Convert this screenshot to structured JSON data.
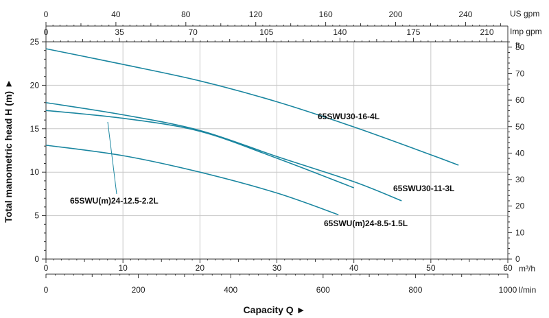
{
  "chart_data": {
    "type": "line",
    "xlabel": "Capacity Q ►",
    "ylabel": "Total manometric head H (m) ►",
    "x_units": {
      "m3h": "m³/h",
      "lmin": "l/min",
      "usgpm": "US gpm",
      "impgpm": "Imp gpm",
      "ft": "ft"
    },
    "xlim": [
      0,
      60
    ],
    "ylim": [
      0,
      25
    ],
    "ticks": {
      "m3h": [
        "0",
        "10",
        "20",
        "30",
        "40",
        "50",
        "60"
      ],
      "lmin": [
        "0",
        "200",
        "400",
        "600",
        "800",
        "1000"
      ],
      "usgpm": [
        "0",
        "40",
        "80",
        "120",
        "160",
        "200",
        "240"
      ],
      "impgpm": [
        "0",
        "35",
        "70",
        "105",
        "140",
        "175",
        "210"
      ],
      "h_m": [
        "0",
        "5",
        "10",
        "15",
        "20",
        "25"
      ],
      "h_ft": [
        "0",
        "10",
        "20",
        "30",
        "40",
        "50",
        "60",
        "70",
        "80"
      ]
    },
    "grid": true,
    "series": [
      {
        "name": "65SWU30-16-4L",
        "x": [
          0,
          10,
          20,
          30,
          40,
          50,
          53.6
        ],
        "y": [
          24.2,
          22.4,
          20.5,
          18.1,
          15.2,
          12.0,
          10.8
        ]
      },
      {
        "name": "65SWU30-11-3L",
        "x": [
          0,
          10,
          20,
          30,
          40,
          46.2
        ],
        "y": [
          18.0,
          16.6,
          14.8,
          11.8,
          8.9,
          6.7
        ]
      },
      {
        "name": "65SWU(m)24-12.5-2.2L",
        "x": [
          0,
          10,
          20,
          30,
          40
        ],
        "y": [
          17.1,
          16.2,
          14.7,
          11.6,
          8.2
        ]
      },
      {
        "name": "65SWU(m)24-8.5-1.5L",
        "x": [
          0,
          10,
          20,
          30,
          38
        ],
        "y": [
          13.1,
          11.9,
          10.0,
          7.6,
          5.1
        ]
      }
    ],
    "labels": {
      "s16": "65SWU30-16-4L",
      "s11": "65SWU30-11-3L",
      "s125": "65SWU(m)24-12.5-2.2L",
      "s85": "65SWU(m)24-8.5-1.5L"
    },
    "line_color": "#1a86a0",
    "grid_color": "#c8c8c8"
  }
}
